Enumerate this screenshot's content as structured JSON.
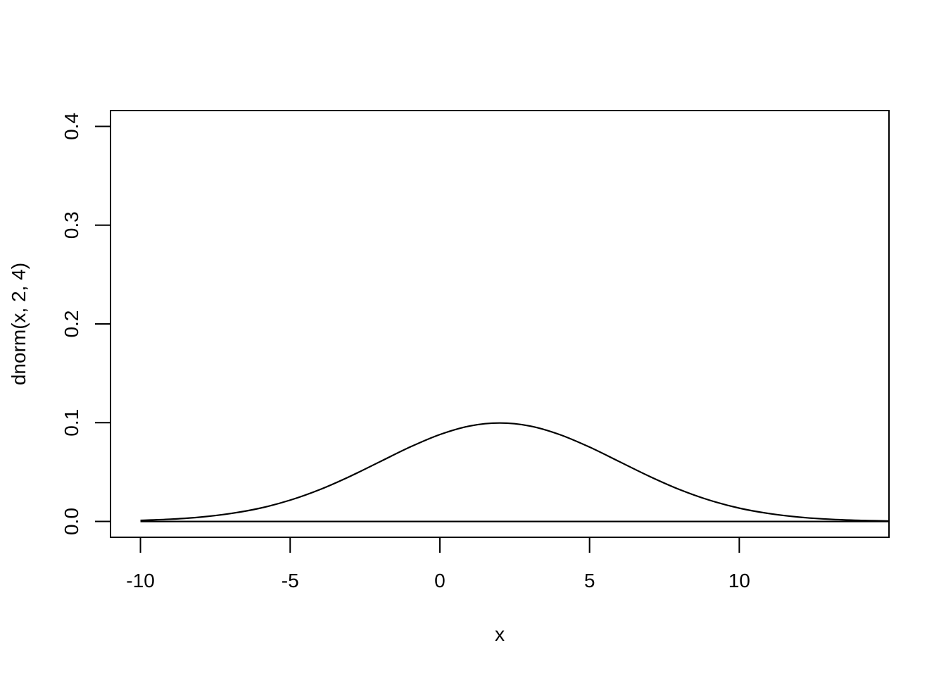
{
  "chart_data": {
    "type": "line",
    "title": "",
    "xlabel": "x",
    "ylabel": "dnorm(x, 2, 4)",
    "xlim": [
      -11,
      15
    ],
    "ylim": [
      -0.016,
      0.416
    ],
    "x_ticks": [
      -10,
      -5,
      0,
      5,
      10
    ],
    "x_tick_labels": [
      "-10",
      "-5",
      "0",
      "5",
      "10"
    ],
    "y_ticks": [
      0.0,
      0.1,
      0.2,
      0.3,
      0.4
    ],
    "y_tick_labels": [
      "0.0",
      "0.1",
      "0.2",
      "0.3",
      "0.4"
    ],
    "grid": false,
    "legend": "none",
    "line_color": "#000000",
    "series": [
      {
        "x": [
          -10,
          -9,
          -8,
          -7,
          -6,
          -5,
          -4,
          -3,
          -2,
          -1,
          0,
          1,
          2,
          3,
          4,
          5,
          6,
          7,
          8,
          9,
          10,
          11,
          12,
          13,
          14,
          15
        ],
        "values": [
          0.0011,
          0.0023,
          0.0044,
          0.008,
          0.0135,
          0.0216,
          0.0324,
          0.0457,
          0.0605,
          0.0753,
          0.088,
          0.0967,
          0.0997,
          0.0967,
          0.088,
          0.0753,
          0.0605,
          0.0457,
          0.0324,
          0.0216,
          0.0135,
          0.008,
          0.0044,
          0.0023,
          0.0011,
          0.0005
        ]
      },
      {
        "x": [
          -10,
          15
        ],
        "values": [
          0.0,
          0.0
        ]
      }
    ]
  }
}
